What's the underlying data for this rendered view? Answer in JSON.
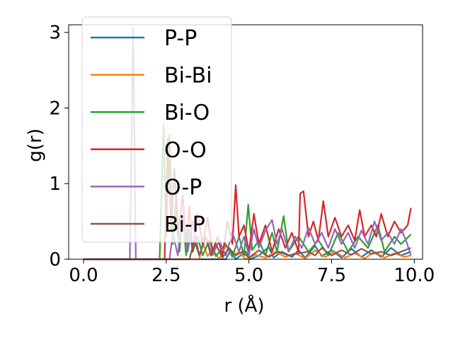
{
  "chart_data": {
    "type": "line",
    "xlabel": "r (Å)",
    "ylabel": "g(r)",
    "xlim": [
      -0.45,
      10.25
    ],
    "ylim": [
      0,
      3.1
    ],
    "xticks": [
      0.0,
      2.5,
      5.0,
      7.5,
      10.0
    ],
    "xtick_labels": [
      "0.0",
      "2.5",
      "5.0",
      "7.5",
      "10.0"
    ],
    "yticks": [
      0,
      1,
      2,
      3
    ],
    "ytick_labels": [
      "0",
      "1",
      "2",
      "3"
    ],
    "grid": false,
    "legend_position": "top-left",
    "series": [
      {
        "name": "P-P",
        "color": "#1f77b4",
        "points": [
          [
            0,
            0
          ],
          [
            4.3,
            0
          ],
          [
            4.45,
            0.12
          ],
          [
            4.6,
            0
          ],
          [
            4.9,
            0.1
          ],
          [
            5.05,
            0
          ],
          [
            5.3,
            0.05
          ],
          [
            5.6,
            0.16
          ],
          [
            5.75,
            0.02
          ],
          [
            6.0,
            0.1
          ],
          [
            6.3,
            0.03
          ],
          [
            6.5,
            0.12
          ],
          [
            6.7,
            0.02
          ],
          [
            7.0,
            0.18
          ],
          [
            7.2,
            0.04
          ],
          [
            7.5,
            0.12
          ],
          [
            7.8,
            0.02
          ],
          [
            8.1,
            0.14
          ],
          [
            8.4,
            0.03
          ],
          [
            8.7,
            0.12
          ],
          [
            9.0,
            0.03
          ],
          [
            9.3,
            0.15
          ],
          [
            9.6,
            0.05
          ],
          [
            9.9,
            0.1
          ]
        ]
      },
      {
        "name": "Bi-Bi",
        "color": "#ff7f0e",
        "points": [
          [
            0,
            0
          ],
          [
            3.5,
            0
          ],
          [
            3.6,
            0.22
          ],
          [
            3.75,
            0.04
          ],
          [
            3.9,
            0.14
          ],
          [
            4.1,
            0
          ],
          [
            4.3,
            0.18
          ],
          [
            4.5,
            0.04
          ],
          [
            4.7,
            0.1
          ],
          [
            4.9,
            0
          ],
          [
            5.2,
            0.06
          ],
          [
            5.5,
            0.02
          ],
          [
            5.8,
            0.1
          ],
          [
            6.1,
            0.03
          ],
          [
            6.4,
            0.08
          ],
          [
            6.7,
            0.01
          ],
          [
            7.0,
            0.12
          ],
          [
            7.3,
            0.03
          ],
          [
            7.6,
            0.1
          ],
          [
            7.9,
            0.02
          ],
          [
            8.2,
            0.08
          ],
          [
            8.5,
            0.01
          ],
          [
            8.8,
            0.1
          ],
          [
            9.1,
            0.02
          ],
          [
            9.4,
            0.08
          ],
          [
            9.7,
            0.03
          ],
          [
            9.9,
            0.05
          ]
        ]
      },
      {
        "name": "Bi-O",
        "color": "#2ca02c",
        "points": [
          [
            0,
            0
          ],
          [
            2.3,
            0
          ],
          [
            2.42,
            1.77
          ],
          [
            2.5,
            0.3
          ],
          [
            2.6,
            1.65
          ],
          [
            2.7,
            0.2
          ],
          [
            2.8,
            0.9
          ],
          [
            2.9,
            0.1
          ],
          [
            3.0,
            0.6
          ],
          [
            3.1,
            0.05
          ],
          [
            3.2,
            0.4
          ],
          [
            3.3,
            0.1
          ],
          [
            3.45,
            0.3
          ],
          [
            3.6,
            0.05
          ],
          [
            3.8,
            0.25
          ],
          [
            4.0,
            0.04
          ],
          [
            4.3,
            0.2
          ],
          [
            4.5,
            0.03
          ],
          [
            4.7,
            0.3
          ],
          [
            4.85,
            0.05
          ],
          [
            4.98,
            0.72
          ],
          [
            5.1,
            0.12
          ],
          [
            5.3,
            0.25
          ],
          [
            5.5,
            0.05
          ],
          [
            5.7,
            0.35
          ],
          [
            5.85,
            0.1
          ],
          [
            6.05,
            0.57
          ],
          [
            6.2,
            0.1
          ],
          [
            6.5,
            0.3
          ],
          [
            6.8,
            0.1
          ],
          [
            7.1,
            0.25
          ],
          [
            7.4,
            0.05
          ],
          [
            7.7,
            0.35
          ],
          [
            8.0,
            0.1
          ],
          [
            8.3,
            0.3
          ],
          [
            8.6,
            0.15
          ],
          [
            8.9,
            0.45
          ],
          [
            9.1,
            0.1
          ],
          [
            9.4,
            0.3
          ],
          [
            9.6,
            0.2
          ],
          [
            9.9,
            0.33
          ]
        ]
      },
      {
        "name": "O-O",
        "color": "#d62728",
        "points": [
          [
            0,
            0
          ],
          [
            2.45,
            0
          ],
          [
            2.55,
            1.6
          ],
          [
            2.65,
            0.4
          ],
          [
            2.75,
            1.2
          ],
          [
            2.85,
            0.3
          ],
          [
            3.0,
            0.85
          ],
          [
            3.1,
            0.2
          ],
          [
            3.2,
            0.7
          ],
          [
            3.3,
            0.1
          ],
          [
            3.45,
            0.6
          ],
          [
            3.6,
            0.2
          ],
          [
            3.75,
            0.55
          ],
          [
            3.9,
            0.1
          ],
          [
            4.05,
            0.3
          ],
          [
            4.2,
            0.05
          ],
          [
            4.35,
            0.5
          ],
          [
            4.5,
            0.2
          ],
          [
            4.6,
            0.98
          ],
          [
            4.7,
            0.3
          ],
          [
            4.85,
            0.45
          ],
          [
            5.0,
            0.1
          ],
          [
            5.15,
            0.6
          ],
          [
            5.3,
            0.2
          ],
          [
            5.5,
            0.45
          ],
          [
            5.7,
            0.1
          ],
          [
            5.9,
            0.4
          ],
          [
            6.1,
            0.15
          ],
          [
            6.3,
            0.35
          ],
          [
            6.5,
            0.1
          ],
          [
            6.55,
            0.87
          ],
          [
            6.65,
            0.9
          ],
          [
            6.8,
            0.3
          ],
          [
            6.95,
            0.5
          ],
          [
            7.1,
            0.25
          ],
          [
            7.25,
            0.77
          ],
          [
            7.4,
            0.3
          ],
          [
            7.6,
            0.55
          ],
          [
            7.8,
            0.3
          ],
          [
            8.0,
            0.45
          ],
          [
            8.2,
            0.25
          ],
          [
            8.35,
            0.65
          ],
          [
            8.5,
            0.3
          ],
          [
            8.7,
            0.45
          ],
          [
            8.85,
            0.3
          ],
          [
            9.0,
            0.6
          ],
          [
            9.2,
            0.3
          ],
          [
            9.4,
            0.5
          ],
          [
            9.6,
            0.35
          ],
          [
            9.8,
            0.45
          ],
          [
            9.9,
            0.68
          ]
        ]
      },
      {
        "name": "O-P",
        "color": "#9467bd",
        "points": [
          [
            0,
            0
          ],
          [
            1.4,
            0
          ],
          [
            1.5,
            3.05
          ],
          [
            1.58,
            0
          ],
          [
            2.6,
            0
          ],
          [
            2.7,
            0.35
          ],
          [
            2.85,
            0.05
          ],
          [
            3.0,
            0.6
          ],
          [
            3.15,
            0.1
          ],
          [
            3.3,
            0.5
          ],
          [
            3.5,
            0.05
          ],
          [
            3.7,
            0.3
          ],
          [
            3.9,
            0.05
          ],
          [
            4.1,
            0.25
          ],
          [
            4.3,
            0.05
          ],
          [
            4.5,
            0.35
          ],
          [
            4.7,
            0.1
          ],
          [
            4.85,
            0.3
          ],
          [
            5.0,
            0.05
          ],
          [
            5.15,
            0.4
          ],
          [
            5.3,
            0.15
          ],
          [
            5.5,
            0.38
          ],
          [
            5.7,
            0.52
          ],
          [
            5.85,
            0.2
          ],
          [
            6.0,
            0.4
          ],
          [
            6.2,
            0.1
          ],
          [
            6.4,
            0.3
          ],
          [
            6.6,
            0.15
          ],
          [
            6.8,
            0.42
          ],
          [
            7.0,
            0.2
          ],
          [
            7.2,
            0.35
          ],
          [
            7.4,
            0.15
          ],
          [
            7.6,
            0.4
          ],
          [
            7.8,
            0.2
          ],
          [
            8.0,
            0.35
          ],
          [
            8.2,
            0.15
          ],
          [
            8.4,
            0.38
          ],
          [
            8.6,
            0.2
          ],
          [
            8.8,
            0.5
          ],
          [
            9.0,
            0.25
          ],
          [
            9.2,
            0.35
          ],
          [
            9.4,
            0.2
          ],
          [
            9.6,
            0.4
          ],
          [
            9.75,
            0.25
          ],
          [
            9.9,
            0.05
          ]
        ]
      },
      {
        "name": "Bi-P",
        "color": "#8c564b",
        "points": [
          [
            0,
            0
          ],
          [
            3.2,
            0
          ],
          [
            3.35,
            0.25
          ],
          [
            3.5,
            0.05
          ],
          [
            3.7,
            0.3
          ],
          [
            3.85,
            0.05
          ],
          [
            4.0,
            0.2
          ],
          [
            4.2,
            0.02
          ],
          [
            4.4,
            0.15
          ],
          [
            4.6,
            0.05
          ],
          [
            4.8,
            0.1
          ],
          [
            5.0,
            0.02
          ],
          [
            5.3,
            0.12
          ],
          [
            5.6,
            0.03
          ],
          [
            5.9,
            0.1
          ],
          [
            6.2,
            0.05
          ],
          [
            6.5,
            0.08
          ],
          [
            6.8,
            0.1
          ],
          [
            7.0,
            0.05
          ],
          [
            7.2,
            0.15
          ],
          [
            7.5,
            0.05
          ],
          [
            7.8,
            0.12
          ],
          [
            8.1,
            0.06
          ],
          [
            8.4,
            0.14
          ],
          [
            8.7,
            0.07
          ],
          [
            9.0,
            0.1
          ],
          [
            9.3,
            0.05
          ],
          [
            9.6,
            0.1
          ],
          [
            9.9,
            0.15
          ]
        ]
      }
    ]
  }
}
